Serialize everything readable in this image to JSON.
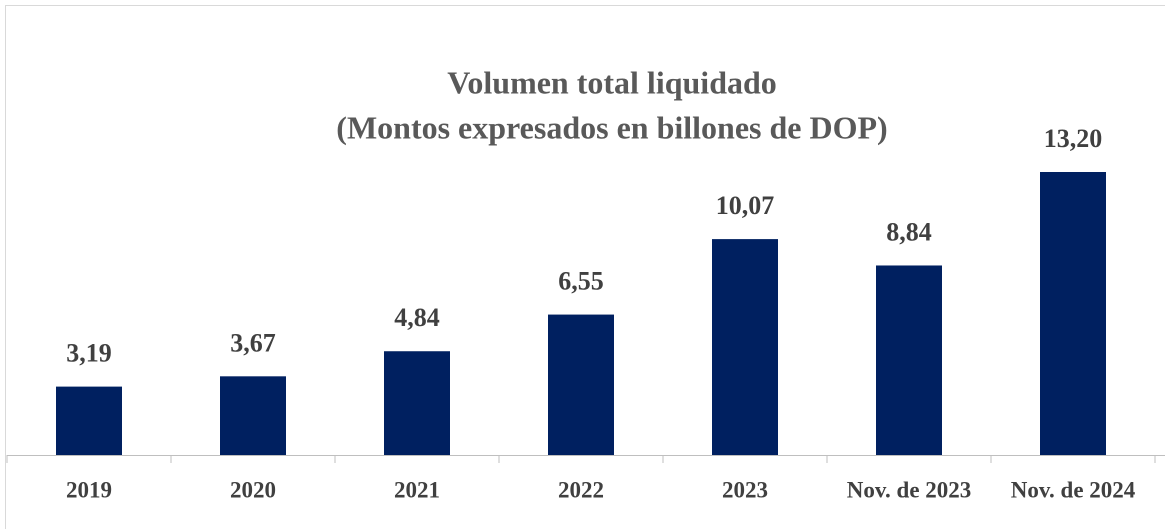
{
  "chart_data": {
    "type": "bar",
    "title": "Volumen total liquidado",
    "subtitle": "(Montos expresados en billones de DOP)",
    "categories": [
      "2019",
      "2020",
      "2021",
      "2022",
      "2023",
      "Nov. de 2023",
      "Nov. de 2024"
    ],
    "values": [
      3.19,
      3.67,
      4.84,
      6.55,
      10.07,
      8.84,
      13.2
    ],
    "value_labels": [
      "3,19",
      "3,67",
      "4,84",
      "6,55",
      "10,07",
      "8,84",
      "13,20"
    ],
    "color": "#002060"
  }
}
